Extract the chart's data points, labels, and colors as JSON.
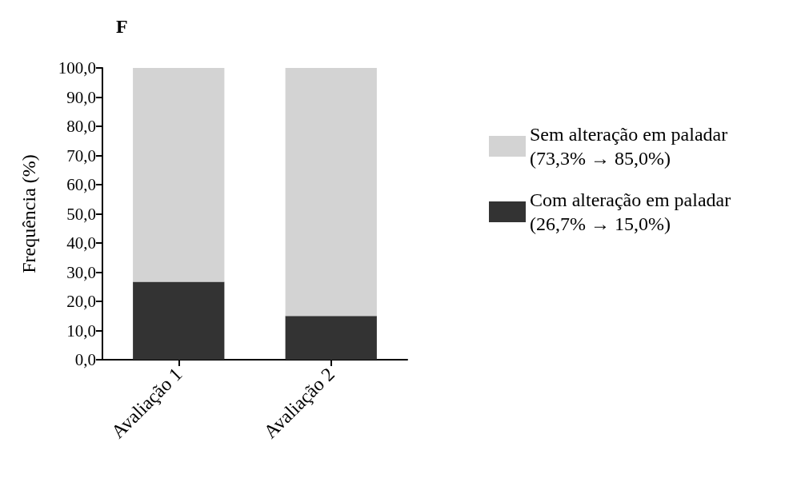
{
  "chart_data": {
    "type": "bar",
    "title": "F",
    "ylabel": "Frequência (%)",
    "categories": [
      "Avaliação 1",
      "Avaliação 2"
    ],
    "stacked": true,
    "legend": "right",
    "grid": false,
    "series": [
      {
        "name": "Com alteração em paladar\n(26,7% → 15,0%)",
        "color": "#333333",
        "values": [
          26.7,
          15.0
        ]
      },
      {
        "name": "Sem alteração em paladar\n(73,3% → 85,0%)",
        "color": "#d3d3d3",
        "values": [
          73.3,
          85.0
        ]
      }
    ],
    "ylim": [
      0,
      100
    ],
    "yticks": [
      {
        "value": 0,
        "label": "0,0"
      },
      {
        "value": 10,
        "label": "10,0"
      },
      {
        "value": 20,
        "label": "20,0"
      },
      {
        "value": 30,
        "label": "30,0"
      },
      {
        "value": 40,
        "label": "40,0"
      },
      {
        "value": 50,
        "label": "50,0"
      },
      {
        "value": 60,
        "label": "60,0"
      },
      {
        "value": 70,
        "label": "70,0"
      },
      {
        "value": 80,
        "label": "80,0"
      },
      {
        "value": 90,
        "label": "90,0"
      },
      {
        "value": 100,
        "label": "100,0"
      }
    ]
  }
}
